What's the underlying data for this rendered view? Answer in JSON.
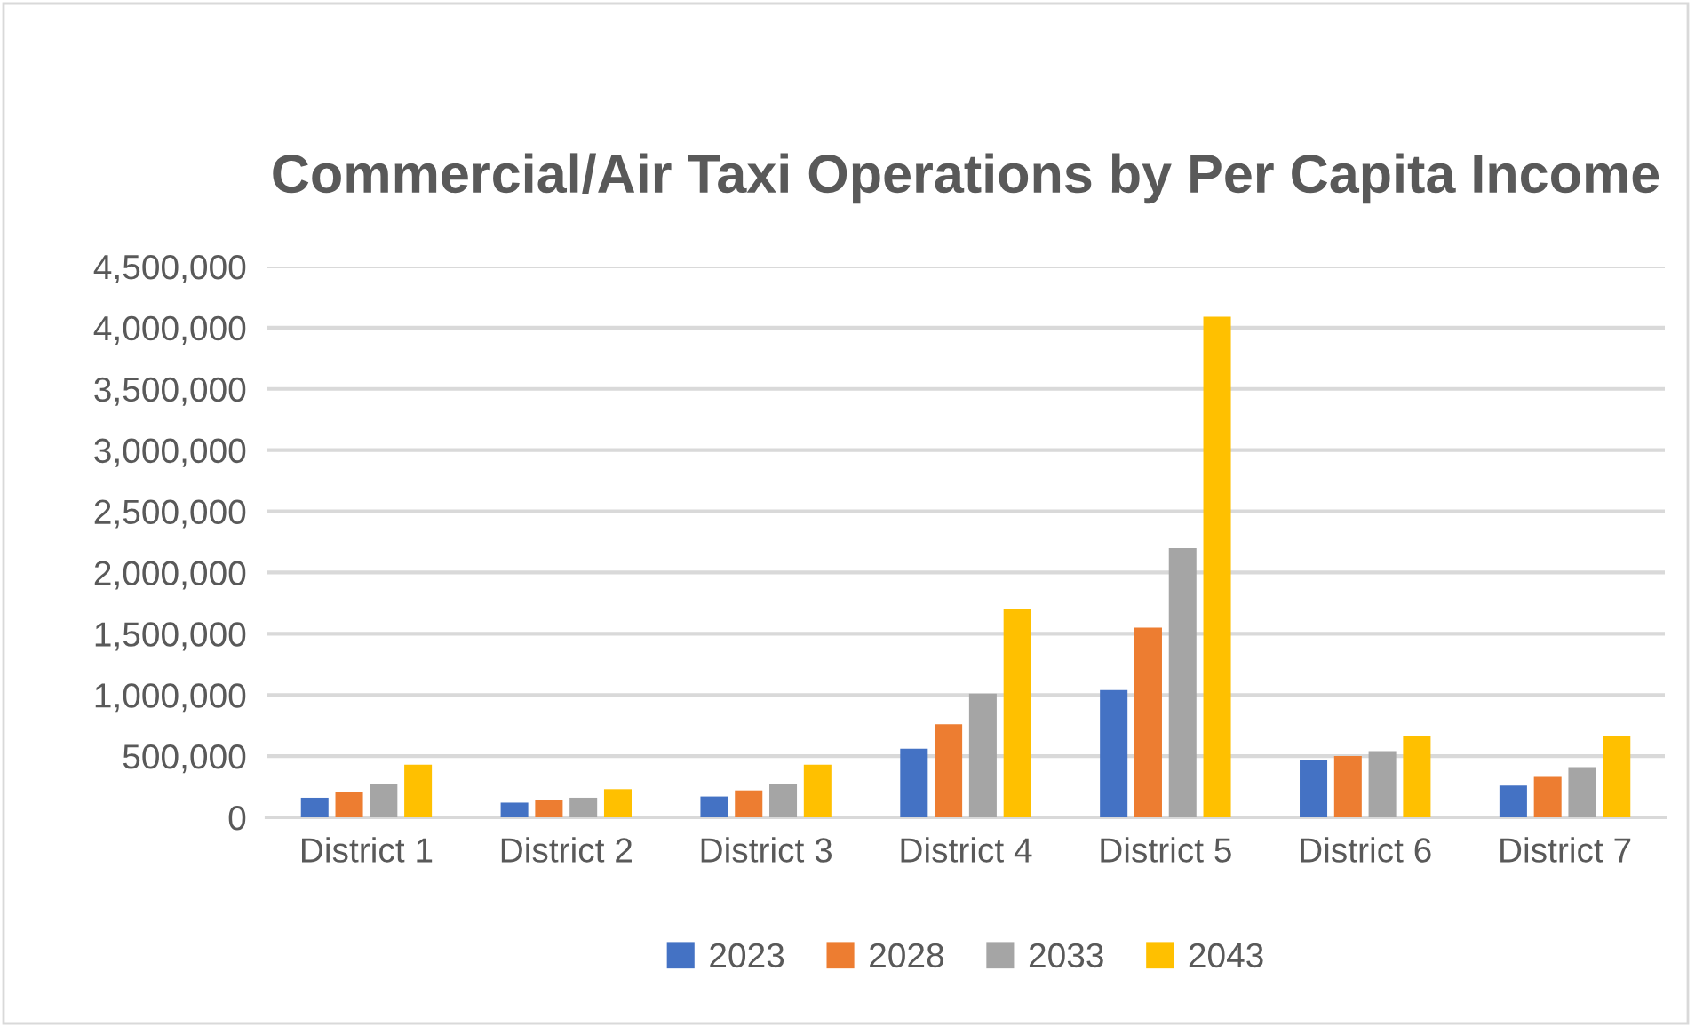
{
  "chart_data": {
    "type": "bar",
    "title": "Commercial/Air Taxi Operations by Per Capita Income",
    "categories": [
      "District 1",
      "District 2",
      "District 3",
      "District 4",
      "District 5",
      "District 6",
      "District 7"
    ],
    "series": [
      {
        "name": "2023",
        "color": "#4472c4",
        "values": [
          160000,
          120000,
          170000,
          560000,
          1040000,
          470000,
          260000
        ]
      },
      {
        "name": "2028",
        "color": "#ed7d31",
        "values": [
          210000,
          140000,
          220000,
          760000,
          1550000,
          500000,
          330000
        ]
      },
      {
        "name": "2033",
        "color": "#a5a5a5",
        "values": [
          270000,
          160000,
          270000,
          1010000,
          2200000,
          540000,
          410000
        ]
      },
      {
        "name": "2043",
        "color": "#ffc000",
        "values": [
          430000,
          230000,
          430000,
          1700000,
          4090000,
          660000,
          660000
        ]
      }
    ],
    "ylim": [
      0,
      4500000
    ],
    "yticks": [
      0,
      {
        "value": 500000,
        "label": "500,000"
      },
      {
        "value": 1000000,
        "label": "1,000,000"
      },
      {
        "value": 1500000,
        "label": "1,500,000"
      },
      {
        "value": 2000000,
        "label": "2,000,000"
      },
      {
        "value": 2500000,
        "label": "2,500,000"
      },
      {
        "value": 3000000,
        "label": "3,000,000"
      },
      {
        "value": 3500000,
        "label": "3,500,000"
      },
      {
        "value": 4000000,
        "label": "4,000,000"
      },
      {
        "value": 4500000,
        "label": "4,500,000"
      }
    ],
    "grid": "y",
    "legend": "bottom"
  }
}
